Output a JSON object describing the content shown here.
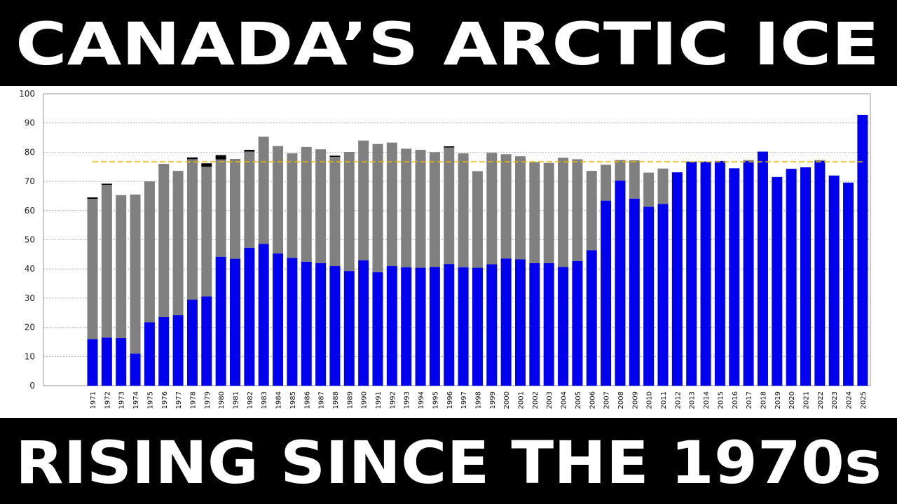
{
  "chart_data": {
    "type": "stacked-bar",
    "title": "CANADA’S ARCTIC ICE",
    "subtitle": "RISING SINCE THE 1970s",
    "categories": [
      "1971",
      "1972",
      "1973",
      "1974",
      "1975",
      "1976",
      "1977",
      "1978",
      "1979",
      "1980",
      "1981",
      "1982",
      "1983",
      "1984",
      "1985",
      "1986",
      "1987",
      "1988",
      "1989",
      "1990",
      "1991",
      "1992",
      "1993",
      "1994",
      "1995",
      "1996",
      "1997",
      "1998",
      "1999",
      "2000",
      "2001",
      "2002",
      "2003",
      "2004",
      "2005",
      "2006",
      "2007",
      "2008",
      "2009",
      "2010",
      "2011",
      "2012",
      "2013",
      "2014",
      "2015",
      "2016",
      "2017",
      "2018",
      "2019",
      "2020",
      "2021",
      "2022",
      "2023",
      "2024",
      "2025"
    ],
    "series": [
      {
        "color": "#0000ee",
        "values": [
          16,
          16.5,
          16.3,
          11,
          21.7,
          23.5,
          24.2,
          29.5,
          30.6,
          44.2,
          43.5,
          47.3,
          48.6,
          45.3,
          43.8,
          42.5,
          42,
          41,
          39.3,
          43,
          38.9,
          41,
          40.6,
          40.4,
          40.7,
          41.7,
          40.6,
          40.4,
          41.6,
          43.6,
          43.3,
          42,
          42,
          40.7,
          42.7,
          46.4,
          63.4,
          70.3,
          64.1,
          61.3,
          62.3,
          73.1,
          76.8,
          76.8,
          77,
          74.5,
          77,
          80.2,
          71.5,
          74.3,
          74.8,
          77,
          72,
          69.6,
          92.8
        ]
      },
      {
        "color": "#808080",
        "values": [
          48,
          52.3,
          49,
          54.5,
          48.3,
          52.5,
          49.4,
          48.1,
          44.4,
          33.3,
          34.2,
          32.9,
          36.7,
          36.8,
          35.8,
          39.3,
          39,
          37.4,
          40.8,
          41,
          43.9,
          42.3,
          40.6,
          40.4,
          39.3,
          39.9,
          39,
          33.1,
          38.2,
          35.7,
          35.3,
          34.6,
          34.3,
          37.4,
          34.9,
          27.2,
          12.3,
          7,
          13.1,
          11.7,
          12.1,
          0,
          0,
          0,
          0,
          0,
          0.3,
          0,
          0,
          0,
          0,
          0.3,
          0,
          0,
          0
        ]
      },
      {
        "color": "#000000",
        "values": [
          0.5,
          0.4,
          0,
          0,
          0,
          0,
          0,
          0.6,
          1.2,
          1.5,
          0,
          0.6,
          0,
          0,
          0,
          0,
          0,
          0.4,
          0,
          0,
          0,
          0,
          0,
          0,
          0,
          0.4,
          0,
          0,
          0,
          0,
          0,
          0,
          0,
          0,
          0,
          0,
          0,
          0,
          0,
          0,
          0,
          0,
          0,
          0,
          0,
          0,
          0,
          0,
          0,
          0,
          0,
          0,
          0,
          0,
          0
        ]
      }
    ],
    "reference_line": {
      "value": 76.7,
      "color": "#e6b800"
    },
    "ylim": [
      0,
      100
    ],
    "yticks": [
      0,
      10,
      20,
      30,
      40,
      50,
      60,
      70,
      80,
      90,
      100
    ],
    "grid": true
  }
}
